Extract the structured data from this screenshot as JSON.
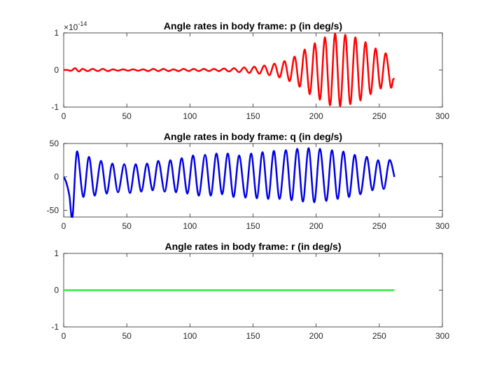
{
  "chart_data": [
    {
      "type": "line",
      "title": "Angle rates in body frame: p (in deg/s)",
      "xlim": [
        0,
        300
      ],
      "ylim": [
        -1,
        1
      ],
      "xticks": [
        0,
        50,
        100,
        150,
        200,
        250,
        300
      ],
      "yticks": [
        -1,
        0,
        1
      ],
      "xtick_labels": [
        "0",
        "50",
        "100",
        "150",
        "200",
        "250",
        "300"
      ],
      "ytick_labels": [
        "-1",
        "0",
        "1"
      ],
      "y_exponent": "×10",
      "y_exponent_power": "-14",
      "grid": false,
      "color": "#ff0000",
      "series": [
        {
          "x": [
            0,
            3,
            6,
            9,
            12,
            15,
            19,
            23,
            27,
            31,
            35,
            39,
            43,
            47,
            51,
            55,
            59,
            63,
            67,
            71,
            75,
            79,
            83,
            87,
            91,
            95,
            99,
            103,
            107,
            111,
            115,
            119,
            123,
            127,
            131,
            135,
            139,
            143,
            147,
            151,
            155,
            159,
            163,
            167,
            171,
            175,
            179,
            183,
            187,
            191,
            195,
            199,
            203,
            207,
            211,
            215,
            219,
            223,
            227,
            231,
            235,
            239,
            243,
            247,
            251,
            255,
            259,
            261,
            262
          ],
          "y": [
            0,
            0,
            -0.02,
            0.05,
            -0.04,
            0.03,
            -0.03,
            0.03,
            -0.03,
            0.03,
            -0.03,
            0.02,
            -0.02,
            0.02,
            -0.02,
            0.02,
            -0.02,
            0.02,
            -0.03,
            0.03,
            -0.03,
            0.03,
            -0.03,
            0.02,
            -0.03,
            0.03,
            -0.03,
            0.03,
            -0.03,
            0.03,
            -0.03,
            0.03,
            -0.03,
            0.04,
            -0.04,
            0.05,
            -0.06,
            0.07,
            -0.08,
            0.09,
            -0.1,
            0.12,
            -0.14,
            0.17,
            -0.2,
            0.24,
            -0.3,
            0.36,
            -0.45,
            0.55,
            -0.65,
            0.72,
            -0.8,
            0.88,
            -0.95,
            0.98,
            -0.97,
            0.95,
            -0.92,
            0.88,
            -0.82,
            0.75,
            -0.65,
            0.58,
            -0.5,
            0.45,
            -0.45,
            -0.25,
            -0.25
          ]
        }
      ]
    },
    {
      "type": "line",
      "title": "Angle rates in body frame: q (in deg/s)",
      "xlim": [
        0,
        300
      ],
      "ylim": [
        -60,
        50
      ],
      "xticks": [
        0,
        50,
        100,
        150,
        200,
        250,
        300
      ],
      "yticks": [
        -50,
        0,
        50
      ],
      "xtick_labels": [
        "0",
        "50",
        "100",
        "150",
        "200",
        "250",
        "300"
      ],
      "ytick_labels": [
        "-50",
        "0",
        "50"
      ],
      "grid": false,
      "color": "#0000e6",
      "series": [
        {
          "x": [
            0,
            2,
            4.5,
            7,
            10.5,
            15.5,
            20,
            24.5,
            29.5,
            34,
            38.5,
            43,
            48,
            52.5,
            57,
            61.5,
            66,
            70.5,
            75,
            80,
            84.5,
            89,
            93.5,
            98,
            102.5,
            107,
            112,
            116.5,
            121,
            125.5,
            130,
            134.5,
            139,
            144,
            148.5,
            153,
            157.5,
            162,
            166.5,
            171,
            176,
            180.5,
            185,
            189.5,
            194,
            198.5,
            203,
            208,
            212.5,
            217,
            221.5,
            226,
            230.5,
            235,
            240,
            244.5,
            249,
            253.5,
            258,
            262
          ],
          "y": [
            0,
            -8,
            -28,
            -60,
            38,
            -30,
            30,
            -28,
            24,
            -25,
            20,
            -23,
            19,
            -24,
            19,
            -22,
            20,
            -20,
            24,
            -22,
            25,
            -23,
            28,
            -25,
            32,
            -28,
            33,
            -28,
            35,
            -26,
            35,
            -30,
            32,
            -31,
            35,
            -32,
            37,
            -33,
            39,
            -33,
            40,
            -35,
            42,
            -37,
            43,
            -38,
            42,
            -36,
            40,
            -33,
            38,
            -30,
            33,
            -26,
            30,
            -20,
            25,
            -18,
            25,
            0
          ]
        }
      ]
    },
    {
      "type": "line",
      "title": "Angle rates in body frame: r (in deg/s)",
      "xlim": [
        0,
        300
      ],
      "ylim": [
        -1,
        1
      ],
      "xticks": [
        0,
        50,
        100,
        150,
        200,
        250,
        300
      ],
      "yticks": [
        -1,
        0,
        1
      ],
      "xtick_labels": [
        "0",
        "50",
        "100",
        "150",
        "200",
        "250",
        "300"
      ],
      "ytick_labels": [
        "-1",
        "0",
        "1"
      ],
      "grid": false,
      "color": "#33ee33",
      "series": [
        {
          "x": [
            0,
            262
          ],
          "y": [
            0,
            0
          ]
        }
      ]
    }
  ]
}
